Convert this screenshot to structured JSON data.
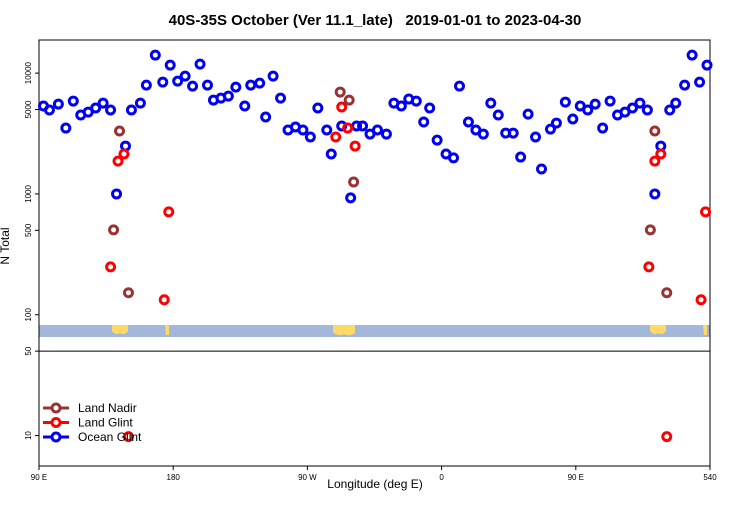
{
  "chart_data": {
    "type": "scatter",
    "title": "40S-35S October (Ver 11.1_late)   2019-01-01 to 2023-04-30",
    "x_label": "Longitude (deg E)",
    "y_label": "N Total",
    "xlim": [
      90,
      540
    ],
    "xticks": [
      {
        "value": 90,
        "label": "90 E"
      },
      180,
      {
        "value": 270,
        "label": "90 W"
      },
      {
        "value": 360,
        "label": "0"
      },
      {
        "value": 450,
        "label": "90 E"
      },
      540
    ],
    "ylim": [
      5.6,
      18800
    ],
    "log_y": true,
    "yticks": [
      10,
      50,
      100,
      500,
      1000,
      5000,
      10000
    ],
    "divider": 50,
    "legend": "lower left",
    "series": [
      {
        "name": "Land Nadir",
        "color": "#993333",
        "x": [
          140,
          144,
          150,
          292,
          298,
          301,
          500,
          503,
          511
        ],
        "values": [
          504,
          3320,
          152,
          6970,
          5980,
          1256,
          504,
          3320,
          152
        ]
      },
      {
        "name": "Land Glint",
        "color": "#ff0000",
        "x": [
          138,
          143,
          147,
          150,
          174,
          177,
          289,
          293,
          297,
          302,
          499,
          503,
          507,
          511,
          534,
          537
        ],
        "values": [
          249,
          1870,
          2140,
          9.8,
          133,
          710,
          2960,
          5240,
          3510,
          2490,
          249,
          1870,
          2140,
          9.8,
          133,
          710
        ]
      },
      {
        "name": "Ocean Glint",
        "color": "#0000ee",
        "x": [
          93,
          97,
          103,
          108,
          113,
          118,
          123,
          128,
          133,
          138,
          142,
          148,
          152,
          158,
          162,
          168,
          173,
          178,
          183,
          188,
          193,
          198,
          203,
          207,
          212,
          217,
          222,
          228,
          232,
          238,
          242,
          247,
          252,
          257,
          262,
          267,
          272,
          277,
          283,
          286,
          293,
          299,
          303,
          307,
          312,
          317,
          323,
          328,
          333,
          338,
          343,
          348,
          352,
          357,
          363,
          368,
          372,
          378,
          383,
          388,
          393,
          398,
          403,
          408,
          413,
          418,
          423,
          427,
          433,
          437,
          443,
          448,
          453,
          458,
          463,
          468,
          473,
          478,
          483,
          488,
          493,
          498,
          503,
          507,
          513,
          517,
          523,
          528,
          533,
          538
        ],
        "values": [
          5340,
          4950,
          5540,
          3510,
          5870,
          4500,
          4760,
          5140,
          5650,
          4950,
          1000,
          2490,
          4950,
          5650,
          7960,
          14100,
          8430,
          11640,
          8590,
          9450,
          7810,
          11870,
          7960,
          5980,
          6210,
          6450,
          7660,
          5340,
          7960,
          8270,
          4330,
          9450,
          6210,
          3380,
          3580,
          3380,
          2960,
          5140,
          3380,
          2140,
          3650,
          927,
          3650,
          3650,
          3130,
          3380,
          3130,
          5650,
          5340,
          6100,
          5870,
          3940,
          5140,
          2790,
          2140,
          1990,
          7810,
          3940,
          3380,
          3130,
          5650,
          4500,
          3190,
          3190,
          2020,
          4580,
          2960,
          1610,
          3440,
          3860,
          5760,
          4170,
          5340,
          4950,
          5540,
          3510,
          5870,
          4500,
          4760,
          5140,
          5650,
          4950,
          1000,
          2490,
          4950,
          5650,
          7960,
          14100,
          8430,
          11640
        ]
      }
    ]
  }
}
